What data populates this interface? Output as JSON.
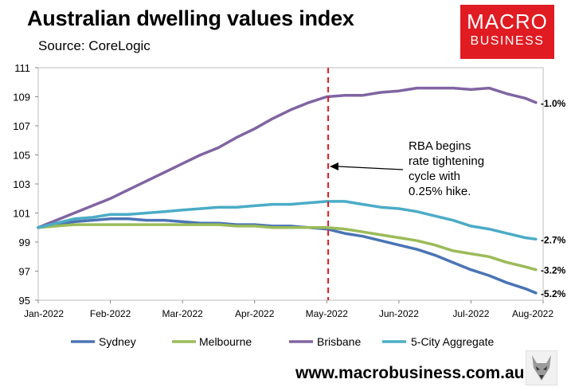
{
  "header": {
    "title": "Australian dwelling values index",
    "source": "Source: CoreLogic",
    "logo_line1": "MACRO",
    "logo_line2": "BUSINESS"
  },
  "footer": {
    "url": "www.macrobusiness.com.au"
  },
  "chart_data": {
    "type": "line",
    "title": "Australian dwelling values index",
    "ylim": [
      95,
      111
    ],
    "yticks": [
      "111",
      "109",
      "107",
      "105",
      "103",
      "101",
      "99",
      "97",
      "95"
    ],
    "x_start_label": "Jan-2022",
    "x_end_label": "Aug-2022",
    "xticks": [
      "Jan-2022",
      "Feb-2022",
      "Mar-2022",
      "Apr-2022",
      "May-2022",
      "Jun-2022",
      "Jul-2022",
      "Aug-2022"
    ],
    "x": [
      0,
      0.25,
      0.5,
      0.75,
      1,
      1.25,
      1.5,
      1.75,
      2,
      2.25,
      2.5,
      2.75,
      3,
      3.25,
      3.5,
      3.75,
      4,
      4.25,
      4.5,
      4.75,
      5,
      5.25,
      5.5,
      5.75,
      6,
      6.25,
      6.5,
      6.75,
      6.9
    ],
    "series": [
      {
        "name": "Sydney",
        "color": "#4a74b4",
        "end_label": "-5.2%",
        "values": [
          100.0,
          100.2,
          100.4,
          100.5,
          100.6,
          100.6,
          100.5,
          100.5,
          100.4,
          100.3,
          100.3,
          100.2,
          100.2,
          100.1,
          100.1,
          100.0,
          99.9,
          99.6,
          99.4,
          99.1,
          98.8,
          98.5,
          98.1,
          97.6,
          97.1,
          96.7,
          96.2,
          95.8,
          95.5
        ]
      },
      {
        "name": "Melbourne",
        "color": "#9bbb59",
        "end_label": "-3.2%",
        "values": [
          100.0,
          100.1,
          100.2,
          100.2,
          100.2,
          100.2,
          100.2,
          100.2,
          100.2,
          100.2,
          100.2,
          100.1,
          100.1,
          100.0,
          100.0,
          100.0,
          100.0,
          99.9,
          99.7,
          99.5,
          99.3,
          99.1,
          98.8,
          98.4,
          98.2,
          98.0,
          97.6,
          97.3,
          97.1
        ]
      },
      {
        "name": "Brisbane",
        "color": "#8064a2",
        "end_label": "-1.0%",
        "values": [
          100.0,
          100.5,
          101.0,
          101.5,
          102.0,
          102.6,
          103.2,
          103.8,
          104.4,
          105.0,
          105.5,
          106.2,
          106.8,
          107.5,
          108.1,
          108.6,
          109.0,
          109.1,
          109.1,
          109.3,
          109.4,
          109.6,
          109.6,
          109.6,
          109.5,
          109.6,
          109.2,
          108.9,
          108.6
        ]
      },
      {
        "name": "5-City Aggregate",
        "color": "#4bacc6",
        "end_label": "-2.7%",
        "values": [
          100.0,
          100.3,
          100.6,
          100.7,
          100.9,
          100.9,
          101.0,
          101.1,
          101.2,
          101.3,
          101.4,
          101.4,
          101.5,
          101.6,
          101.6,
          101.7,
          101.8,
          101.8,
          101.6,
          101.4,
          101.3,
          101.1,
          100.8,
          100.5,
          100.1,
          99.9,
          99.6,
          99.3,
          99.2
        ]
      }
    ],
    "event": {
      "x": 4.02,
      "annotation": [
        "RBA begins",
        "rate tightening",
        "cycle with",
        "0.25% hike."
      ]
    },
    "legend": [
      "Sydney",
      "Melbourne",
      "Brisbane",
      "5-City Aggregate"
    ],
    "legend_position": "bottom"
  }
}
